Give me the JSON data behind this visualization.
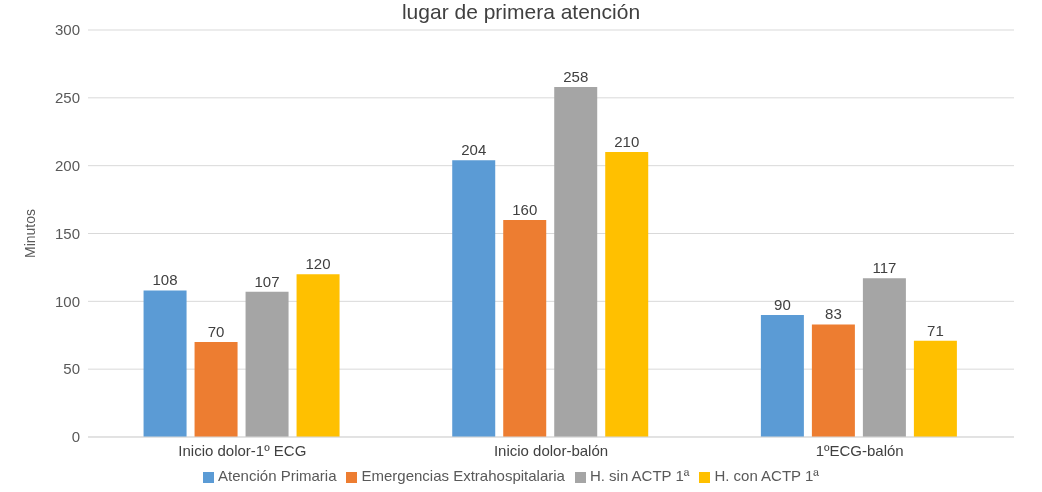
{
  "chart_data": {
    "type": "bar",
    "title": "lugar de primera atención",
    "ylabel": "Minutos",
    "categories": [
      "Inicio dolor-1º ECG",
      "Inicio dolor-balón",
      "1ºECG-balón"
    ],
    "series": [
      {
        "name": "Atención Primaria",
        "color": "#5b9bd5",
        "values": [
          108,
          204,
          90
        ]
      },
      {
        "name": "Emergencias Extrahospitalaria",
        "color": "#ed7d31",
        "values": [
          70,
          160,
          83
        ]
      },
      {
        "name": "H. sin ACTP 1ª",
        "color": "#a5a5a5",
        "values": [
          107,
          258,
          117
        ]
      },
      {
        "name": "H. con ACTP 1ª",
        "color": "#ffc000",
        "values": [
          120,
          210,
          71
        ]
      }
    ],
    "ylim": [
      0,
      300
    ],
    "yticks": [
      0,
      50,
      100,
      150,
      200,
      250,
      300
    ],
    "grid": "y",
    "legend": "bottom",
    "data_labels": true
  }
}
